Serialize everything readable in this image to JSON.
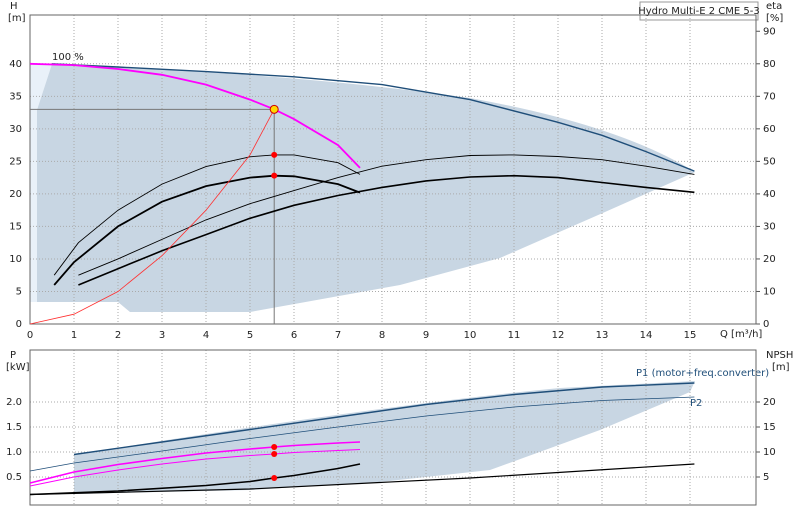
{
  "chart_data": [
    {
      "type": "line",
      "title": "Hydro Multi-E 2 CME 5-3",
      "xlabel": "Q [m³/h]",
      "ylabel": "H",
      "ylabel_unit": "[m]",
      "y2label": "eta",
      "y2label_unit": "[%]",
      "annotations": [
        {
          "text": "100 %"
        }
      ],
      "xlim": [
        0,
        16.5
      ],
      "xticks": [
        0,
        1,
        2,
        3,
        4,
        5,
        6,
        7,
        8,
        9,
        10,
        11,
        12,
        13,
        14,
        15
      ],
      "ylim": [
        0,
        47.5
      ],
      "yticks": [
        0,
        5,
        10,
        15,
        20,
        25,
        30,
        35,
        40
      ],
      "y2lim": [
        0,
        95
      ],
      "y2ticks": [
        0,
        10,
        20,
        30,
        40,
        50,
        60,
        70,
        80,
        90
      ],
      "grid": true,
      "xtick_labels": true,
      "series": [
        {
          "color": "#1f4e79",
          "width": 1.4,
          "x": [
            0.5,
            2,
            4,
            6,
            8,
            10,
            12,
            13,
            14,
            15.1
          ],
          "values": [
            40,
            39.5,
            38.8,
            38,
            36.8,
            34.5,
            31,
            29,
            26.5,
            23.5
          ]
        },
        {
          "color": "#ff00ff",
          "width": 1.8,
          "x": [
            0,
            1,
            2,
            3,
            4,
            5,
            5.55,
            6,
            7,
            7.5
          ],
          "values": [
            40,
            39.8,
            39.2,
            38.3,
            36.8,
            34.5,
            33,
            31.5,
            27.5,
            24
          ]
        },
        {
          "color": "#000000",
          "width": 0.9,
          "x": [
            0.55,
            1.1,
            2,
            3,
            4,
            5,
            5.55,
            6,
            7,
            7.5
          ],
          "values": [
            7.5,
            12.5,
            17.5,
            21.5,
            24.2,
            25.7,
            26,
            26,
            24.8,
            23
          ]
        },
        {
          "color": "#000000",
          "width": 1.8,
          "x": [
            0.55,
            1,
            2,
            3,
            4,
            5,
            5.55,
            6,
            7,
            7.5
          ],
          "values": [
            6,
            9.5,
            15,
            18.8,
            21.2,
            22.5,
            22.8,
            22.7,
            21.5,
            20.2
          ]
        },
        {
          "color": "#000000",
          "width": 0.9,
          "axis": "y2",
          "x": [
            1.1,
            2,
            3,
            4,
            5,
            6,
            7,
            8,
            9,
            10,
            11,
            12,
            13,
            14,
            15.1
          ],
          "values": [
            15,
            20,
            26,
            32,
            37,
            41,
            45,
            48.5,
            50.5,
            51.8,
            52,
            51.5,
            50.5,
            48.5,
            46
          ]
        },
        {
          "color": "#000000",
          "width": 1.6,
          "axis": "y2",
          "x": [
            1.1,
            2,
            3,
            4,
            5,
            6,
            7,
            8,
            9,
            10,
            11,
            12,
            13,
            14,
            15.1
          ],
          "values": [
            12,
            17,
            22.5,
            27.5,
            32.5,
            36.5,
            39.5,
            42,
            44,
            45.2,
            45.6,
            45,
            43.5,
            42,
            40.5
          ]
        },
        {
          "color": "#ff3030",
          "width": 0.8,
          "x": [
            0,
            1,
            2,
            3,
            4,
            5,
            5.55
          ],
          "values": [
            0,
            1.5,
            5,
            10.5,
            17.5,
            26,
            33
          ]
        }
      ],
      "markers": [
        {
          "x": 5.55,
          "y": 33,
          "color": "#ffd700",
          "guides": true
        },
        {
          "x": 5.55,
          "y": 26,
          "color": "#ff0000"
        },
        {
          "x": 5.55,
          "y": 22.8,
          "color": "#ff0000"
        }
      ]
    },
    {
      "type": "line",
      "ylabel": "P",
      "ylabel_unit": "[kW]",
      "y2label": "NPSH",
      "y2label_unit": "[m]",
      "xlim": [
        0,
        16.5
      ],
      "xticks": [
        0,
        1,
        2,
        3,
        4,
        5,
        6,
        7,
        8,
        9,
        10,
        11,
        12,
        13,
        14,
        15
      ],
      "ylim": [
        -0.06,
        3.04
      ],
      "yticks": [
        0.5,
        {
          "value": 1,
          "label": "1.0"
        },
        1.5,
        {
          "value": 2,
          "label": "2.0"
        }
      ],
      "y2lim": [
        -0.6,
        30.4
      ],
      "y2ticks": [
        5,
        10,
        15,
        20
      ],
      "grid": true,
      "xtick_labels": false,
      "series": [
        {
          "name": "P1 (motor+freq.converter)",
          "color": "#1f4e79",
          "width": 1.4,
          "x": [
            1,
            3,
            5,
            7,
            9,
            11,
            13,
            15.1
          ],
          "values": [
            0.95,
            1.2,
            1.45,
            1.7,
            1.95,
            2.15,
            2.3,
            2.38
          ]
        },
        {
          "name": "P2",
          "color": "#1f4e79",
          "width": 0.8,
          "x": [
            0,
            1,
            3,
            5,
            7,
            9,
            11,
            13,
            15.1
          ],
          "values": [
            0.62,
            0.78,
            1.02,
            1.27,
            1.5,
            1.72,
            1.9,
            2.03,
            2.1
          ]
        },
        {
          "color": "#ff00ff",
          "width": 1.6,
          "x": [
            0,
            1,
            2,
            3,
            4,
            5,
            5.55,
            6,
            7,
            7.5
          ],
          "values": [
            0.38,
            0.6,
            0.75,
            0.87,
            0.98,
            1.06,
            1.1,
            1.13,
            1.18,
            1.2
          ]
        },
        {
          "color": "#ff00ff",
          "width": 1,
          "x": [
            0,
            1,
            2,
            3,
            4,
            5,
            5.55,
            6,
            7,
            7.5
          ],
          "values": [
            0.32,
            0.5,
            0.64,
            0.76,
            0.86,
            0.93,
            0.96,
            0.99,
            1.03,
            1.05
          ]
        },
        {
          "color": "#000000",
          "width": 1.6,
          "axis": "y2",
          "x": [
            0,
            2,
            4,
            5,
            5.55,
            6,
            7,
            7.5
          ],
          "values": [
            1.5,
            2.2,
            3.3,
            4.1,
            4.8,
            5.3,
            6.7,
            7.6
          ]
        },
        {
          "color": "#000000",
          "width": 1.2,
          "axis": "y2",
          "x": [
            0,
            5,
            10,
            15.1
          ],
          "values": [
            1.5,
            2.6,
            4.8,
            7.6
          ]
        }
      ],
      "markers": [
        {
          "x": 5.55,
          "y": 1.1,
          "color": "#ff0000"
        },
        {
          "x": 5.55,
          "y": 0.96,
          "color": "#ff0000"
        },
        {
          "x": 5.55,
          "y": 4.8,
          "color": "#ff0000",
          "axis": "y2"
        }
      ]
    }
  ]
}
